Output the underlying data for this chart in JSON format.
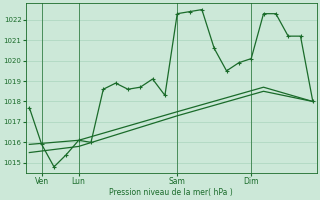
{
  "background_color": "#cce8d8",
  "grid_color": "#aad4be",
  "line_color": "#1a6b2a",
  "xlabel": "Pression niveau de la mer( hPa )",
  "ylabel_ticks": [
    1015,
    1016,
    1017,
    1018,
    1019,
    1020,
    1021,
    1022
  ],
  "ylim": [
    1014.5,
    1022.8
  ],
  "xlim": [
    -0.3,
    23.3
  ],
  "total_points": 24,
  "line1_x": [
    0,
    1,
    2,
    3,
    4,
    5,
    6,
    7,
    8,
    9,
    10,
    11,
    12,
    13,
    14,
    15,
    16,
    17,
    18,
    19,
    20,
    21,
    22,
    23
  ],
  "line1_y": [
    1017.7,
    1015.9,
    1014.8,
    1015.4,
    1016.1,
    1016.0,
    1018.6,
    1018.9,
    1018.6,
    1018.7,
    1019.1,
    1018.3,
    1022.3,
    1022.4,
    1022.5,
    1020.6,
    1019.5,
    1019.9,
    1020.1,
    1022.3,
    1022.3,
    1021.2,
    1021.2,
    1018.0
  ],
  "line2_x": [
    0,
    4,
    12,
    19,
    23
  ],
  "line2_y": [
    1015.9,
    1016.1,
    1017.5,
    1018.7,
    1018.0
  ],
  "line3_x": [
    0,
    4,
    12,
    19,
    23
  ],
  "line3_y": [
    1015.5,
    1015.8,
    1017.3,
    1018.5,
    1018.0
  ],
  "xtick_labels": [
    "Ven",
    "Lun",
    "Sam",
    "Dim"
  ],
  "xtick_positions": [
    1,
    4,
    12,
    18
  ],
  "vline_positions": [
    1,
    4,
    12,
    18
  ]
}
